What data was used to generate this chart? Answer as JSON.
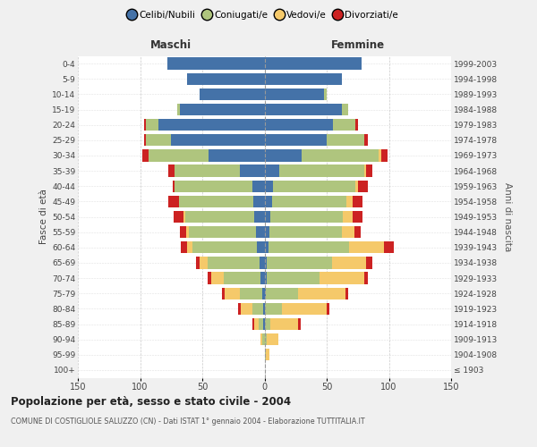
{
  "age_groups": [
    "100+",
    "95-99",
    "90-94",
    "85-89",
    "80-84",
    "75-79",
    "70-74",
    "65-69",
    "60-64",
    "55-59",
    "50-54",
    "45-49",
    "40-44",
    "35-39",
    "30-34",
    "25-29",
    "20-24",
    "15-19",
    "10-14",
    "5-9",
    "0-4"
  ],
  "birth_years": [
    "≤ 1903",
    "1904-1908",
    "1909-1913",
    "1914-1918",
    "1919-1923",
    "1924-1928",
    "1929-1933",
    "1934-1938",
    "1939-1943",
    "1944-1948",
    "1949-1953",
    "1954-1958",
    "1959-1963",
    "1964-1968",
    "1969-1973",
    "1974-1978",
    "1979-1983",
    "1984-1988",
    "1989-1993",
    "1994-1998",
    "1999-2003"
  ],
  "male_celibi": [
    0,
    0,
    0,
    1,
    1,
    2,
    3,
    4,
    6,
    7,
    8,
    9,
    10,
    20,
    45,
    75,
    85,
    68,
    52,
    62,
    78
  ],
  "male_coniugati": [
    0,
    0,
    2,
    4,
    9,
    18,
    30,
    42,
    52,
    54,
    56,
    60,
    62,
    52,
    48,
    20,
    10,
    2,
    0,
    0,
    0
  ],
  "male_vedovi": [
    0,
    0,
    1,
    3,
    9,
    12,
    10,
    6,
    4,
    2,
    1,
    0,
    0,
    0,
    0,
    0,
    0,
    0,
    0,
    0,
    0
  ],
  "male_divorziati": [
    0,
    0,
    0,
    2,
    2,
    2,
    3,
    3,
    5,
    5,
    8,
    8,
    2,
    5,
    5,
    2,
    2,
    0,
    0,
    0,
    0
  ],
  "female_nubili": [
    0,
    0,
    0,
    0,
    0,
    1,
    2,
    2,
    3,
    4,
    5,
    6,
    7,
    12,
    30,
    50,
    55,
    62,
    48,
    62,
    78
  ],
  "female_coniugate": [
    0,
    1,
    2,
    5,
    14,
    26,
    42,
    52,
    65,
    58,
    58,
    60,
    66,
    68,
    62,
    30,
    18,
    5,
    2,
    0,
    0
  ],
  "female_vedove": [
    0,
    3,
    9,
    22,
    36,
    38,
    36,
    28,
    28,
    10,
    8,
    5,
    2,
    2,
    2,
    0,
    0,
    0,
    0,
    0,
    0
  ],
  "female_divorziate": [
    0,
    0,
    0,
    2,
    2,
    2,
    3,
    5,
    8,
    5,
    8,
    8,
    8,
    5,
    5,
    3,
    2,
    0,
    0,
    0,
    0
  ],
  "colors": {
    "celibi": "#4472a8",
    "coniugati": "#afc57e",
    "vedovi": "#f5c96a",
    "divorziati": "#cc2222"
  },
  "legend_labels": [
    "Celibi/Nubili",
    "Coniugati/e",
    "Vedovi/e",
    "Divorziati/e"
  ],
  "title": "Popolazione per età, sesso e stato civile - 2004",
  "subtitle": "COMUNE DI COSTIGLIOLE SALUZZO (CN) - Dati ISTAT 1° gennaio 2004 - Elaborazione TUTTITALIA.IT",
  "ylabel_left": "Fasce di età",
  "ylabel_right": "Anni di nascita",
  "header_maschi": "Maschi",
  "header_femmine": "Femmine",
  "xlim": 150,
  "bg_color": "#f0f0f0",
  "plot_bg": "#ffffff"
}
